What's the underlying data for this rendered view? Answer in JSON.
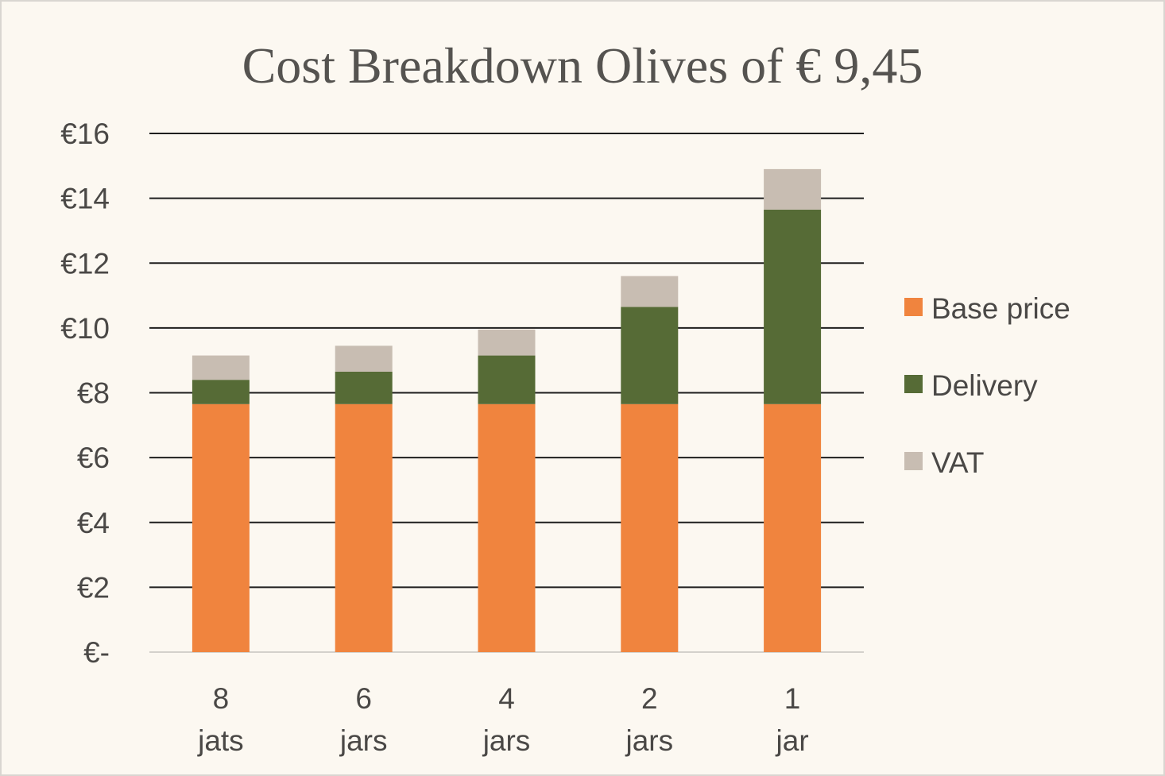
{
  "chart_data": {
    "type": "bar",
    "stacked": true,
    "title": "Cost Breakdown Olives of € 9,45",
    "categories": [
      [
        "8",
        "jats"
      ],
      [
        "6",
        "jars"
      ],
      [
        "4",
        "jars"
      ],
      [
        "2",
        "jars"
      ],
      [
        "1",
        "jar"
      ]
    ],
    "series": [
      {
        "name": "Base price",
        "color": "#f0843e",
        "values": [
          7.65,
          7.65,
          7.65,
          7.65,
          7.65
        ]
      },
      {
        "name": "Delivery",
        "color": "#566b36",
        "values": [
          0.75,
          1.0,
          1.5,
          3.0,
          6.0
        ]
      },
      {
        "name": "VAT",
        "color": "#c8bdb2",
        "values": [
          0.75,
          0.8,
          0.8,
          0.95,
          1.25
        ]
      }
    ],
    "yticks": [
      "€-",
      "€2",
      "€4",
      "€6",
      "€8",
      "€10",
      "€12",
      "€14",
      "€16"
    ],
    "ylim": [
      0,
      16
    ],
    "grid": true,
    "legend": "right"
  }
}
